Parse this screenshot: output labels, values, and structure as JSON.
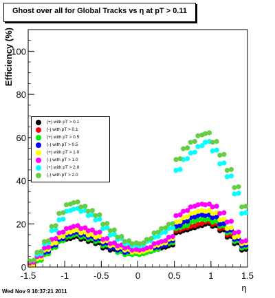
{
  "title": "Ghost over all for Global Tracks vs η at pT > 0.11",
  "footer": "Wed Nov  9 10:37:21 2011",
  "chart_data": {
    "type": "scatter",
    "title": "Ghost over all for Global Tracks vs η at pT > 0.11",
    "xlabel": "η",
    "ylabel": "Efficiency (%)",
    "xlim": [
      -1.5,
      1.5
    ],
    "ylim": [
      0,
      110
    ],
    "xticks": [
      "-1.5",
      "-1",
      "-0.5",
      "0",
      "0.5",
      "1",
      "1.5"
    ],
    "yticks": [
      "0",
      "20",
      "40",
      "60",
      "80",
      "100"
    ],
    "legend_placement": "middle-left",
    "x": [
      -1.45,
      -1.35,
      -1.25,
      -1.15,
      -1.05,
      -0.95,
      -0.85,
      -0.75,
      -0.65,
      -0.55,
      -0.45,
      -0.35,
      -0.25,
      -0.15,
      -0.05,
      0.05,
      0.15,
      0.25,
      0.35,
      0.45,
      0.55,
      0.65,
      0.75,
      0.85,
      0.95,
      1.05,
      1.15,
      1.25,
      1.35,
      1.45
    ],
    "series": [
      {
        "name": "(+) with pT > 0.1",
        "color": "#000000",
        "values": [
          1,
          3,
          6,
          9,
          12,
          13,
          14,
          13,
          12,
          11,
          9,
          8,
          7,
          6,
          6,
          6,
          7,
          8,
          9,
          10,
          16,
          17,
          18,
          19,
          20,
          19,
          17,
          14,
          11,
          8
        ]
      },
      {
        "name": "(-) with pT > 0.1",
        "color": "#ff0000",
        "values": [
          1,
          4,
          7,
          10,
          13,
          14,
          15,
          14,
          13,
          12,
          10,
          9,
          8,
          7,
          6,
          7,
          8,
          9,
          10,
          11,
          17,
          18,
          19,
          20,
          21,
          20,
          18,
          15,
          12,
          9
        ]
      },
      {
        "name": "(+) with pT > 0.5",
        "color": "#00ee00",
        "values": [
          1,
          3,
          6,
          9,
          12,
          14,
          15,
          14,
          13,
          12,
          10,
          9,
          7,
          6,
          6,
          6,
          7,
          8,
          10,
          11,
          18,
          19,
          21,
          22,
          22,
          21,
          19,
          16,
          12,
          9
        ]
      },
      {
        "name": "(-) with pT > 0.5",
        "color": "#0000ff",
        "values": [
          1,
          4,
          7,
          10,
          13,
          15,
          16,
          15,
          14,
          13,
          11,
          9,
          8,
          7,
          7,
          7,
          8,
          9,
          10,
          12,
          19,
          21,
          23,
          24,
          24,
          23,
          20,
          17,
          13,
          10
        ]
      },
      {
        "name": "(+) with pT > 1.0",
        "color": "#ffff00",
        "values": [
          1,
          4,
          8,
          11,
          14,
          16,
          17,
          16,
          15,
          14,
          12,
          10,
          9,
          8,
          7,
          7,
          8,
          10,
          11,
          13,
          21,
          23,
          25,
          26,
          26,
          25,
          22,
          18,
          14,
          11
        ]
      },
      {
        "name": "(-) with pT > 1.0",
        "color": "#ff00ff",
        "values": [
          2,
          5,
          9,
          13,
          16,
          18,
          19,
          18,
          17,
          16,
          13,
          11,
          10,
          9,
          8,
          8,
          9,
          11,
          12,
          14,
          24,
          26,
          28,
          29,
          29,
          28,
          25,
          21,
          16,
          12
        ]
      },
      {
        "name": "(+) with pT > 2.0",
        "color": "#00ffff",
        "values": [
          3,
          6,
          11,
          17,
          22,
          26,
          27,
          26,
          24,
          22,
          18,
          15,
          13,
          11,
          10,
          10,
          12,
          14,
          16,
          18,
          45,
          50,
          53,
          56,
          58,
          54,
          48,
          42,
          34,
          25
        ]
      },
      {
        "name": "(-) with pT > 2.0",
        "color": "#66cc44",
        "values": [
          3,
          7,
          12,
          19,
          25,
          29,
          30,
          28,
          26,
          24,
          20,
          17,
          14,
          12,
          11,
          11,
          13,
          16,
          18,
          20,
          50,
          55,
          58,
          61,
          62,
          58,
          52,
          45,
          37,
          28
        ]
      }
    ]
  }
}
